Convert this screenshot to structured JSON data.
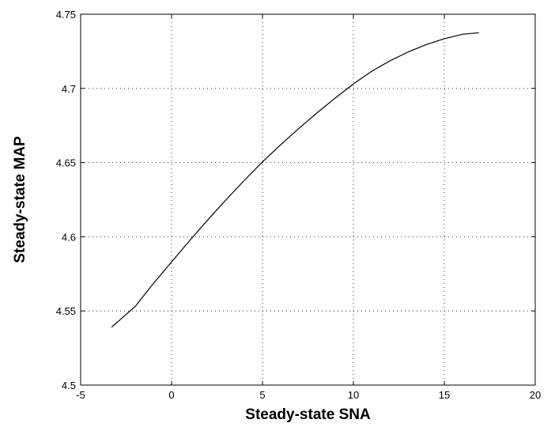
{
  "chart_data": {
    "type": "line",
    "title": "",
    "xlabel": "Steady-state SNA",
    "ylabel": "Steady-state MAP",
    "xlim": [
      -5,
      20
    ],
    "ylim": [
      4.5,
      4.75
    ],
    "grid": true,
    "x_ticks": [
      -5,
      0,
      5,
      10,
      15,
      20
    ],
    "y_ticks": [
      4.5,
      4.55,
      4.6,
      4.65,
      4.7,
      4.75
    ],
    "x_tick_labels": [
      "-5",
      "0",
      "5",
      "10",
      "15",
      "20"
    ],
    "y_tick_labels": [
      "4.5",
      "4.55",
      "4.6",
      "4.65",
      "4.7",
      "4.75"
    ],
    "series": [
      {
        "color": "#000000",
        "x": [
          -3.3,
          -2.0,
          -1.0,
          0.0,
          1.0,
          2.0,
          3.0,
          4.0,
          5.0,
          6.0,
          7.0,
          8.0,
          9.0,
          10.0,
          11.0,
          12.0,
          13.0,
          14.0,
          15.0,
          16.0,
          16.9
        ],
        "y": [
          4.539,
          4.553,
          4.5685,
          4.583,
          4.5975,
          4.6115,
          4.625,
          4.638,
          4.6505,
          4.662,
          4.673,
          4.6835,
          4.6935,
          4.703,
          4.7115,
          4.7185,
          4.7245,
          4.7295,
          4.7335,
          4.7365,
          4.7375
        ]
      }
    ]
  }
}
